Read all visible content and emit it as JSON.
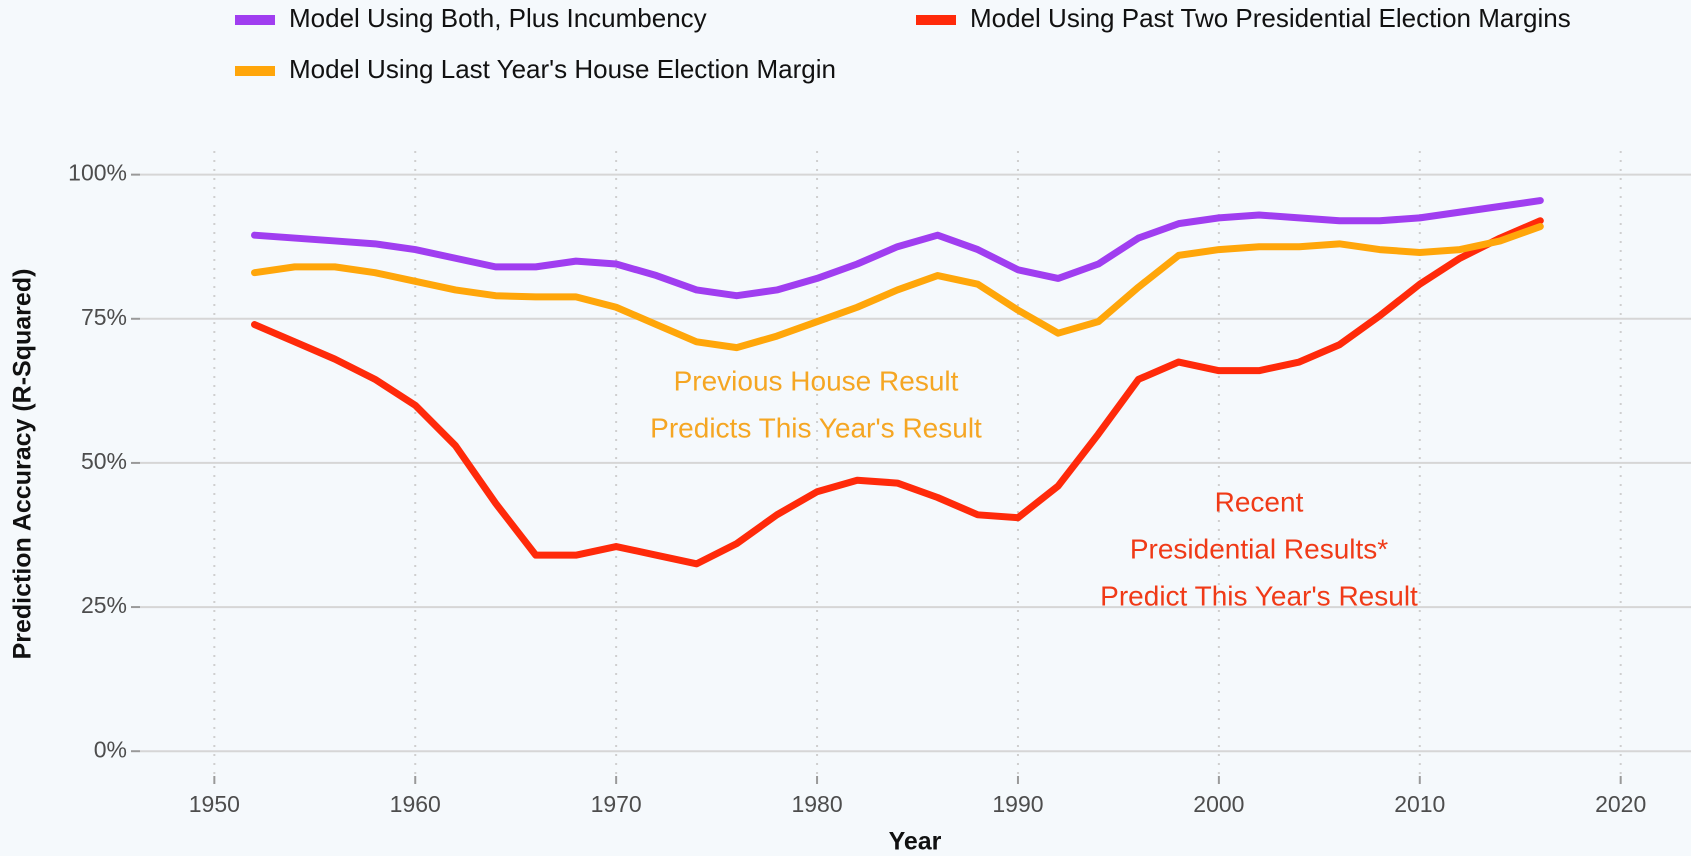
{
  "chart_data": {
    "type": "line",
    "x_label": "Year",
    "y_label": "Prediction Accuracy (R-Squared)",
    "x": [
      1952,
      1954,
      1956,
      1958,
      1960,
      1962,
      1964,
      1966,
      1968,
      1970,
      1972,
      1974,
      1976,
      1978,
      1980,
      1982,
      1984,
      1986,
      1988,
      1990,
      1992,
      1994,
      1996,
      1998,
      2000,
      2002,
      2004,
      2006,
      2008,
      2010,
      2012,
      2014,
      2016
    ],
    "series": [
      {
        "name": "Model Using Both, Plus Incumbency",
        "color": "#a03ef0",
        "values": [
          89.5,
          89,
          88.5,
          88,
          87,
          85.5,
          84,
          84,
          85,
          84.5,
          82.5,
          80,
          79,
          80,
          82,
          84.5,
          87.5,
          89.5,
          87,
          83.5,
          82,
          84.5,
          89,
          91.5,
          92.5,
          93,
          92.5,
          92,
          92,
          92.5,
          93.5,
          94.5,
          95.5
        ]
      },
      {
        "name": "Model Using Past Two Presidential Election Margins",
        "color": "#ff2a0a",
        "values": [
          74,
          71,
          68,
          64.5,
          60,
          53,
          43,
          34,
          34,
          35.5,
          34,
          32.5,
          36,
          41,
          45,
          47,
          46.5,
          44,
          41,
          40.5,
          46,
          55,
          64.5,
          67.5,
          66,
          66,
          67.5,
          70.5,
          75.5,
          81,
          85.5,
          89,
          92
        ]
      },
      {
        "name": "Model Using Last Year's House Election Margin",
        "color": "#ffa60a",
        "values": [
          83,
          84,
          84,
          83,
          81.5,
          80,
          79,
          78.8,
          78.8,
          77,
          74,
          71,
          70,
          72,
          74.5,
          77,
          80,
          82.5,
          81,
          76.5,
          72.5,
          74.5,
          80.5,
          86,
          87,
          87.5,
          87.5,
          88,
          87,
          86.5,
          87,
          88.5,
          91
        ]
      }
    ],
    "xlim": [
      1946.3,
      2023.5
    ],
    "ylim": [
      -4.3,
      104.1
    ],
    "xticks": [
      1950,
      1960,
      1970,
      1980,
      1990,
      2000,
      2010,
      2020
    ],
    "yticks": [
      {
        "value": 0,
        "label": "0%"
      },
      {
        "value": 25,
        "label": "25%"
      },
      {
        "value": 50,
        "label": "50%"
      },
      {
        "value": 75,
        "label": "75%"
      },
      {
        "value": 100,
        "label": "100%"
      }
    ],
    "grid": true,
    "annotations": [
      {
        "lines": [
          "Previous House Result",
          "Predicts This Year's Result"
        ],
        "color": "#f5a623"
      },
      {
        "lines": [
          "Recent",
          "Presidential Results*",
          "Predict This Year's Result"
        ],
        "color": "#f03a17"
      }
    ]
  }
}
